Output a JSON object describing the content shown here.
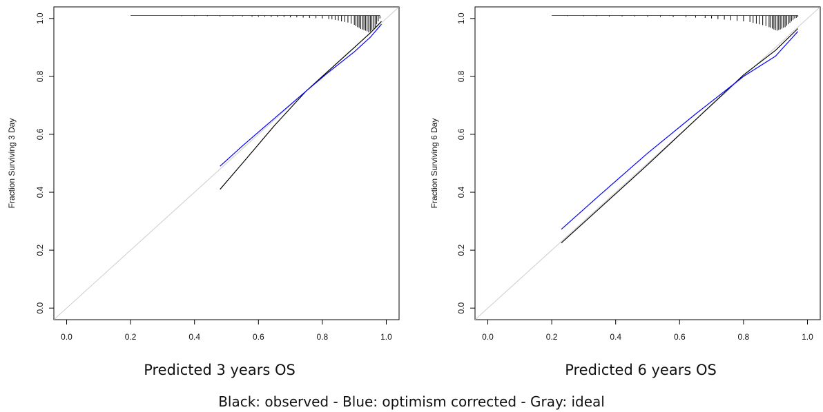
{
  "caption": "Black: observed - Blue: optimism corrected - Gray: ideal",
  "chart_data": [
    {
      "type": "line",
      "xlabel": "Predicted  3 years OS",
      "ylabel": "Fraction Surviving 3 Day",
      "xlim": [
        -0.04,
        1.04
      ],
      "ylim": [
        -0.04,
        1.04
      ],
      "xticks": [
        "0.0",
        "0.2",
        "0.4",
        "0.6",
        "0.8",
        "1.0"
      ],
      "yticks": [
        "0.0",
        "0.2",
        "0.4",
        "0.6",
        "0.8",
        "1.0"
      ],
      "grid": false,
      "series": [
        {
          "color": "#cccccc",
          "x": [
            -0.04,
            1.04
          ],
          "y": [
            -0.04,
            1.04
          ]
        },
        {
          "color": "#000000",
          "x": [
            0.48,
            0.55,
            0.65,
            0.75,
            0.82,
            0.9,
            0.95,
            0.985
          ],
          "y": [
            0.41,
            0.5,
            0.63,
            0.75,
            0.82,
            0.9,
            0.95,
            0.99
          ]
        },
        {
          "color": "#0000ff",
          "x": [
            0.48,
            0.55,
            0.65,
            0.75,
            0.82,
            0.9,
            0.95,
            0.985
          ],
          "y": [
            0.49,
            0.56,
            0.655,
            0.75,
            0.815,
            0.885,
            0.935,
            0.98
          ]
        }
      ],
      "rug": {
        "x": [
          0.36,
          0.4,
          0.44,
          0.48,
          0.52,
          0.55,
          0.58,
          0.6,
          0.62,
          0.64,
          0.66,
          0.68,
          0.7,
          0.72,
          0.74,
          0.76,
          0.78,
          0.8,
          0.82,
          0.83,
          0.84,
          0.85,
          0.86,
          0.87,
          0.88,
          0.89,
          0.9,
          0.905,
          0.91,
          0.915,
          0.92,
          0.925,
          0.93,
          0.935,
          0.94,
          0.945,
          0.95,
          0.955,
          0.96,
          0.965,
          0.97,
          0.975,
          0.98
        ],
        "h": [
          0.002,
          0.002,
          0.002,
          0.003,
          0.003,
          0.003,
          0.004,
          0.004,
          0.004,
          0.005,
          0.005,
          0.005,
          0.006,
          0.006,
          0.007,
          0.008,
          0.009,
          0.01,
          0.012,
          0.013,
          0.015,
          0.017,
          0.02,
          0.022,
          0.024,
          0.028,
          0.032,
          0.036,
          0.04,
          0.042,
          0.046,
          0.048,
          0.05,
          0.052,
          0.054,
          0.058,
          0.055,
          0.05,
          0.045,
          0.04,
          0.03,
          0.02,
          0.01
        ]
      }
    },
    {
      "type": "line",
      "xlabel": "Predicted  6 years OS",
      "ylabel": "Fraction Surviving 6 Day",
      "xlim": [
        -0.04,
        1.04
      ],
      "ylim": [
        -0.04,
        1.04
      ],
      "xticks": [
        "0.0",
        "0.2",
        "0.4",
        "0.6",
        "0.8",
        "1.0"
      ],
      "yticks": [
        "0.0",
        "0.2",
        "0.4",
        "0.6",
        "0.8",
        "1.0"
      ],
      "grid": false,
      "series": [
        {
          "color": "#cccccc",
          "x": [
            -0.04,
            1.04
          ],
          "y": [
            -0.04,
            1.04
          ]
        },
        {
          "color": "#000000",
          "x": [
            0.23,
            0.35,
            0.5,
            0.65,
            0.8,
            0.9,
            0.97
          ],
          "y": [
            0.225,
            0.345,
            0.495,
            0.65,
            0.805,
            0.89,
            0.965
          ]
        },
        {
          "color": "#0000ff",
          "x": [
            0.23,
            0.35,
            0.5,
            0.65,
            0.8,
            0.9,
            0.97
          ],
          "y": [
            0.272,
            0.39,
            0.535,
            0.67,
            0.8,
            0.87,
            0.955
          ]
        }
      ],
      "rug": {
        "x": [
          0.25,
          0.3,
          0.34,
          0.38,
          0.42,
          0.46,
          0.5,
          0.54,
          0.58,
          0.62,
          0.65,
          0.68,
          0.7,
          0.72,
          0.74,
          0.76,
          0.78,
          0.8,
          0.82,
          0.83,
          0.84,
          0.85,
          0.86,
          0.87,
          0.88,
          0.885,
          0.89,
          0.895,
          0.9,
          0.905,
          0.91,
          0.915,
          0.92,
          0.925,
          0.93,
          0.935,
          0.94,
          0.945,
          0.95,
          0.955,
          0.96,
          0.965,
          0.97
        ],
        "h": [
          0.002,
          0.002,
          0.002,
          0.003,
          0.003,
          0.003,
          0.004,
          0.004,
          0.005,
          0.006,
          0.007,
          0.008,
          0.01,
          0.012,
          0.014,
          0.016,
          0.018,
          0.02,
          0.022,
          0.025,
          0.028,
          0.03,
          0.033,
          0.036,
          0.04,
          0.042,
          0.045,
          0.048,
          0.05,
          0.052,
          0.05,
          0.048,
          0.045,
          0.042,
          0.04,
          0.035,
          0.03,
          0.025,
          0.02,
          0.015,
          0.01,
          0.008,
          0.005
        ]
      }
    }
  ]
}
